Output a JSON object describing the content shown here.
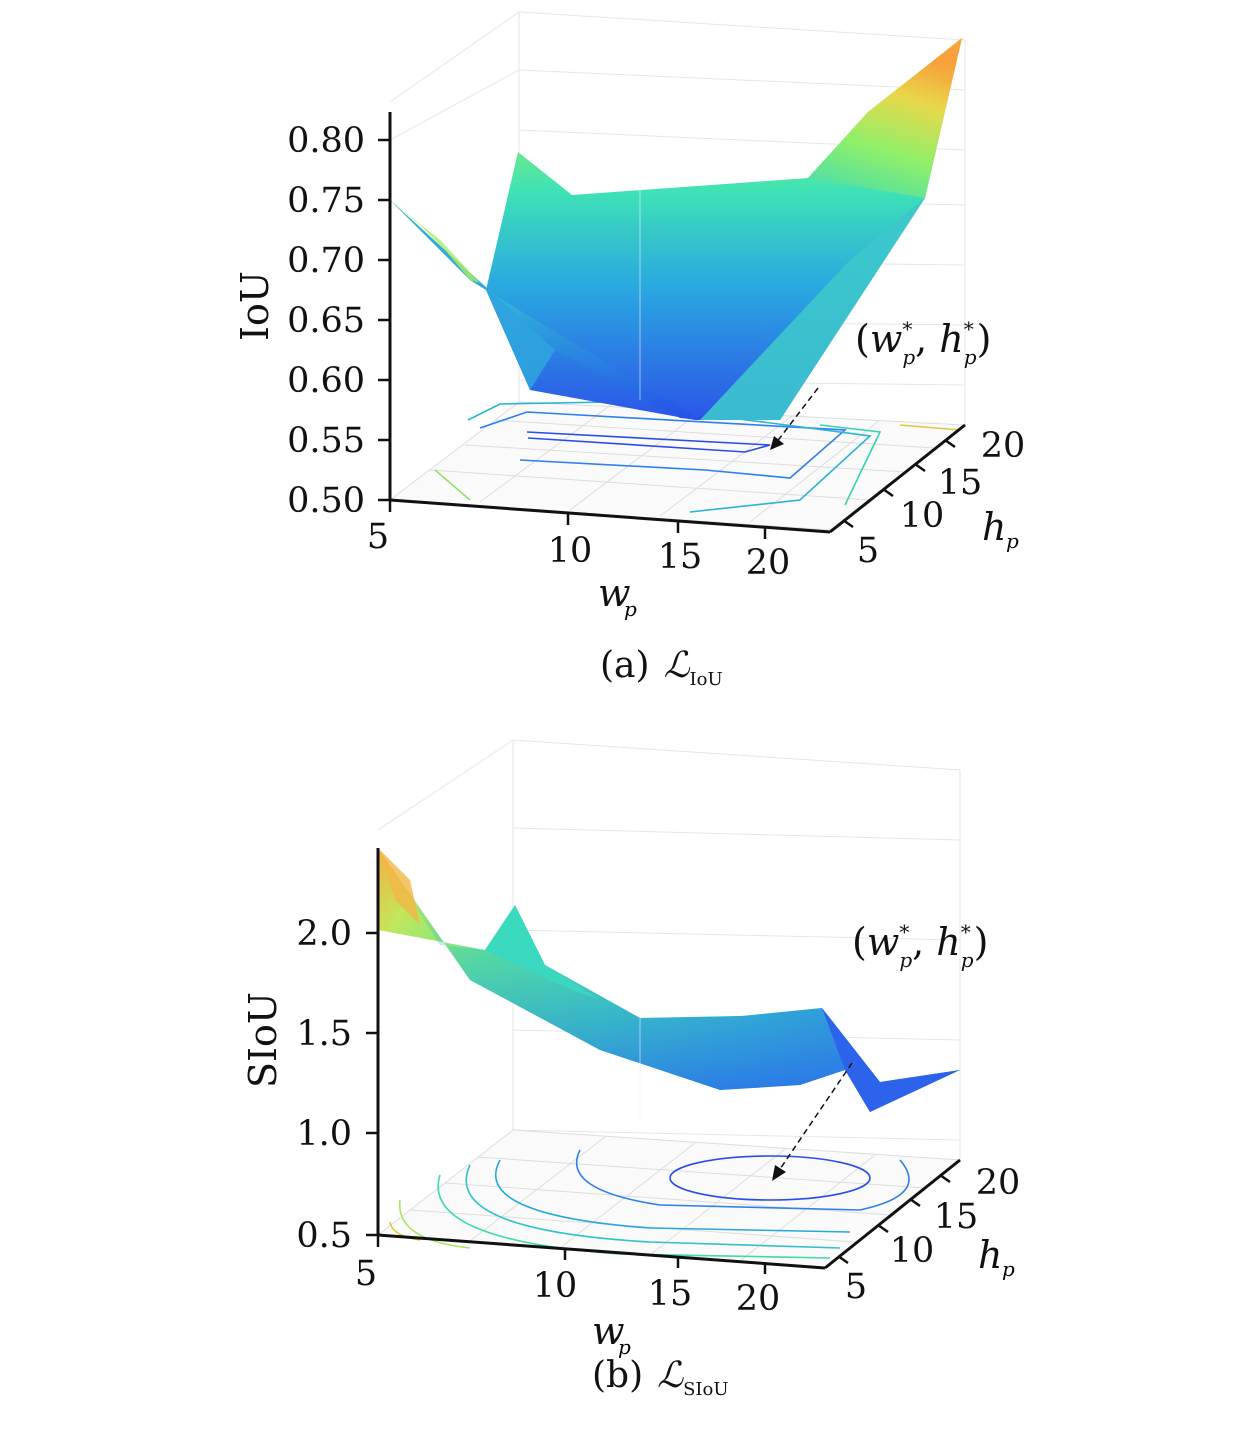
{
  "chart_data": [
    {
      "type": "surface",
      "caption_prefix": "(a)",
      "caption_symbol": "ℒ",
      "caption_subscript": "IoU",
      "zlabel": "IoU",
      "xlabel": "w",
      "xlabel_sub": "p",
      "ylabel": "h",
      "ylabel_sub": "p",
      "zticks": [
        "0.80",
        "0.75",
        "0.70",
        "0.65",
        "0.60",
        "0.55",
        "0.50"
      ],
      "xticks": [
        "5",
        "10",
        "15",
        "20"
      ],
      "yticks": [
        "5",
        "10",
        "15",
        "20"
      ],
      "zlim": [
        0.5,
        0.82
      ],
      "xlim": [
        5,
        22
      ],
      "ylim": [
        5,
        22
      ],
      "annotation": {
        "open": "(",
        "w": "w",
        "w_sub": "p",
        "w_sup": "*",
        "sep": ",",
        "h": "h",
        "h_sub": "p",
        "h_sup": "*",
        "close": ")"
      },
      "minimum_at": {
        "w": 20,
        "h": 20
      }
    },
    {
      "type": "surface",
      "caption_prefix": "(b)",
      "caption_symbol": "ℒ",
      "caption_subscript": "SIoU",
      "zlabel": "SIoU",
      "xlabel": "w",
      "xlabel_sub": "p",
      "ylabel": "h",
      "ylabel_sub": "p",
      "zticks": [
        "2.0",
        "1.5",
        "1.0",
        "0.5"
      ],
      "xticks": [
        "5",
        "10",
        "15",
        "20"
      ],
      "yticks": [
        "5",
        "10",
        "15",
        "20"
      ],
      "zlim": [
        0.5,
        2.4
      ],
      "xlim": [
        5,
        22
      ],
      "ylim": [
        5,
        22
      ],
      "annotation": {
        "open": "(",
        "w": "w",
        "w_sub": "p",
        "w_sup": "*",
        "sep": ",",
        "h": "h",
        "h_sub": "p",
        "h_sup": "*",
        "close": ")"
      },
      "minimum_at": {
        "w": 20,
        "h": 20
      }
    }
  ],
  "colormap": [
    "#3e26a8",
    "#2b6ff5",
    "#1fb0d8",
    "#3fe6a8",
    "#a8f05a",
    "#f2d34a",
    "#f9a33a"
  ]
}
